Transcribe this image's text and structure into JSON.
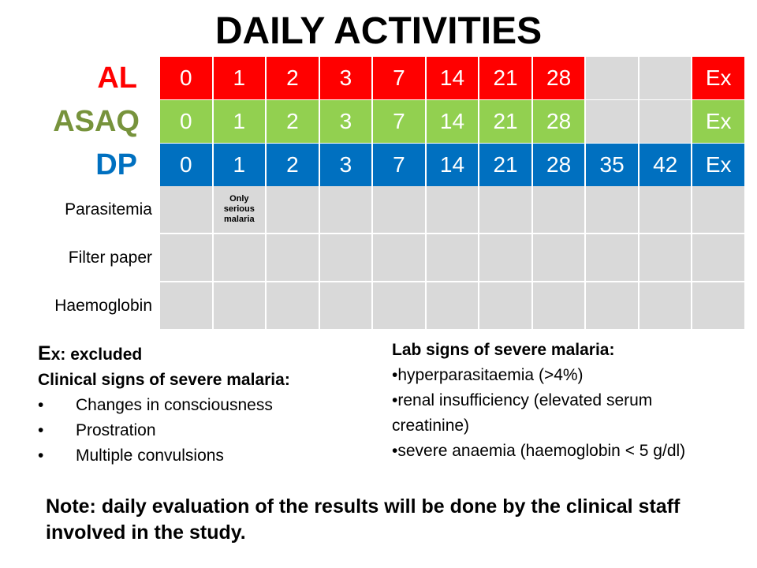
{
  "title": "DAILY ACTIVITIES",
  "schedules": [
    {
      "label": "AL",
      "color": "#ff0000",
      "cells": [
        "0",
        "1",
        "2",
        "3",
        "7",
        "14",
        "21",
        "28",
        "",
        "",
        "Ex"
      ]
    },
    {
      "label": "ASAQ",
      "color": "#92d050",
      "label_color": "#77933c",
      "cells": [
        "0",
        "1",
        "2",
        "3",
        "7",
        "14",
        "21",
        "28",
        "",
        "",
        "Ex"
      ]
    },
    {
      "label": "DP",
      "color": "#0070c0",
      "cells": [
        "0",
        "1",
        "2",
        "3",
        "7",
        "14",
        "21",
        "28",
        "35",
        "42",
        "Ex"
      ]
    }
  ],
  "activities": [
    {
      "label": "Parasitemia",
      "notes": {
        "1": "Only serious malaria"
      }
    },
    {
      "label": "Filter paper",
      "notes": {}
    },
    {
      "label": "Haemoglobin",
      "notes": {}
    }
  ],
  "legend": {
    "ex_key": "E",
    "ex_rest": "x: excluded",
    "clinical_heading": "Clinical signs of severe malaria:",
    "clinical_items": [
      "Changes in consciousness",
      "Prostration",
      "Multiple convulsions"
    ]
  },
  "lab": {
    "heading": "Lab signs of severe malaria:",
    "items": [
      "•hyperparasitaemia (>4%)",
      "•renal insufficiency (elevated serum creatinine)",
      "•severe anaemia (haemoglobin < 5 g/dl)"
    ]
  },
  "note": "Note: daily evaluation of the results will be done by the clinical staff involved in the study."
}
